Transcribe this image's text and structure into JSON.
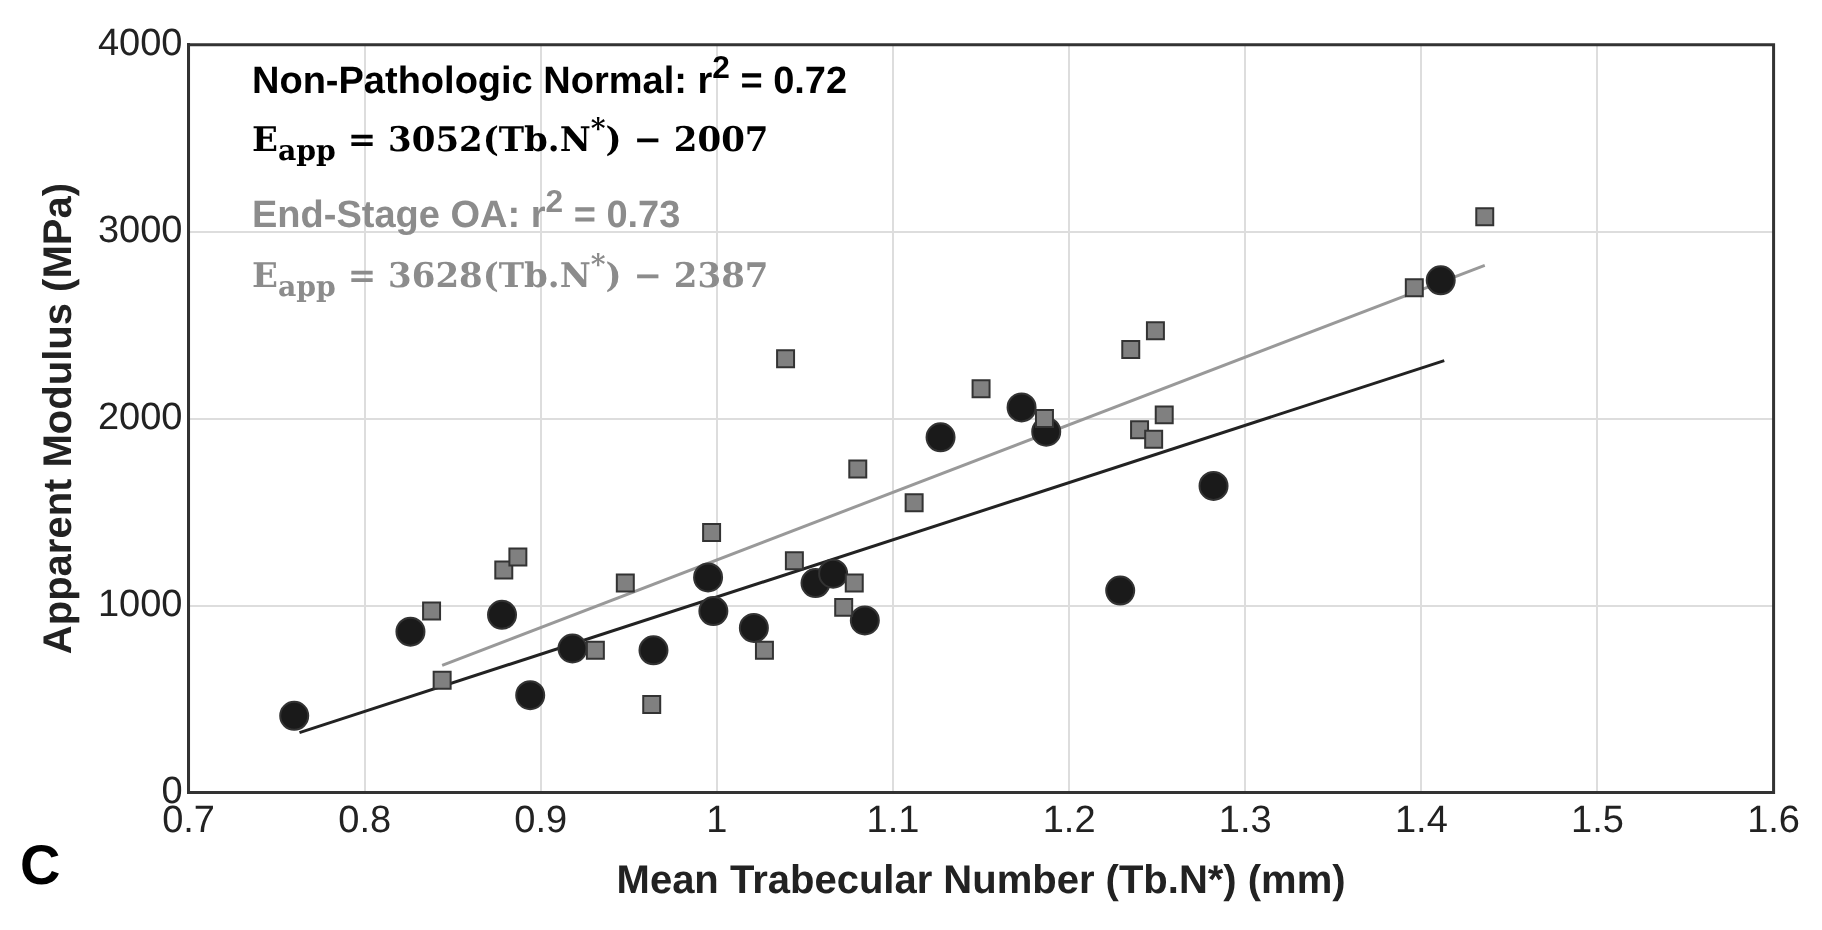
{
  "chart_data": {
    "type": "scatter",
    "xlabel": "Mean Trabecular Number (Tb.N*) (mm)",
    "ylabel": "Apparent Modulus (MPa)",
    "xlim": [
      0.7,
      1.6
    ],
    "xticks": [
      0.7,
      0.8,
      0.9,
      1,
      1.1,
      1.2,
      1.3,
      1.4,
      1.5,
      1.6
    ],
    "ylim": [
      0,
      4000
    ],
    "yticks": [
      0,
      1000,
      2000,
      3000,
      4000
    ],
    "grid": true,
    "legend": false,
    "annotations": [
      "Non-Pathologic Normal: r$^{2}$ = 0.72",
      "E$_{app}$ =  3052(Tb.N$^{*}$) − 2007",
      "End-Stage OA: r$^{2}$ = 0.73",
      "E$_{app}$ =  3628(Tb.N$^{*}$) − 2387",
      "C"
    ],
    "series": [
      {
        "type": "scatter",
        "marker": "circle",
        "color": "#1a1a1a",
        "x": [
          0.76,
          0.826,
          0.878,
          0.894,
          0.918,
          0.964,
          0.995,
          0.998,
          1.021,
          1.056,
          1.066,
          1.084,
          1.127,
          1.173,
          1.187,
          1.229,
          1.282,
          1.411
        ],
        "values": [
          410,
          860,
          950,
          520,
          770,
          760,
          1150,
          970,
          880,
          1120,
          1170,
          920,
          1900,
          2060,
          1930,
          1080,
          1640,
          2740
        ]
      },
      {
        "type": "scatter",
        "marker": "square",
        "color": "#808080",
        "x": [
          0.838,
          0.844,
          0.879,
          0.887,
          0.931,
          0.948,
          0.963,
          0.997,
          1.039,
          1.027,
          1.044,
          1.072,
          1.078,
          1.08,
          1.112,
          1.15,
          1.186,
          1.235,
          1.24,
          1.248,
          1.249,
          1.254,
          1.396,
          1.436
        ],
        "values": [
          970,
          600,
          1190,
          1260,
          760,
          1120,
          470,
          1390,
          2320,
          760,
          1240,
          990,
          1120,
          1730,
          1550,
          2160,
          2000,
          2370,
          1940,
          1890,
          2470,
          2020,
          2700,
          3080
        ]
      },
      {
        "type": "line",
        "marker": "none",
        "color": "#222222",
        "x": [
          0.763,
          1.413
        ],
        "values": [
          320,
          2310
        ]
      },
      {
        "type": "line",
        "marker": "none",
        "color": "#999999",
        "x": [
          0.844,
          1.436
        ],
        "values": [
          680,
          2820
        ]
      }
    ]
  }
}
